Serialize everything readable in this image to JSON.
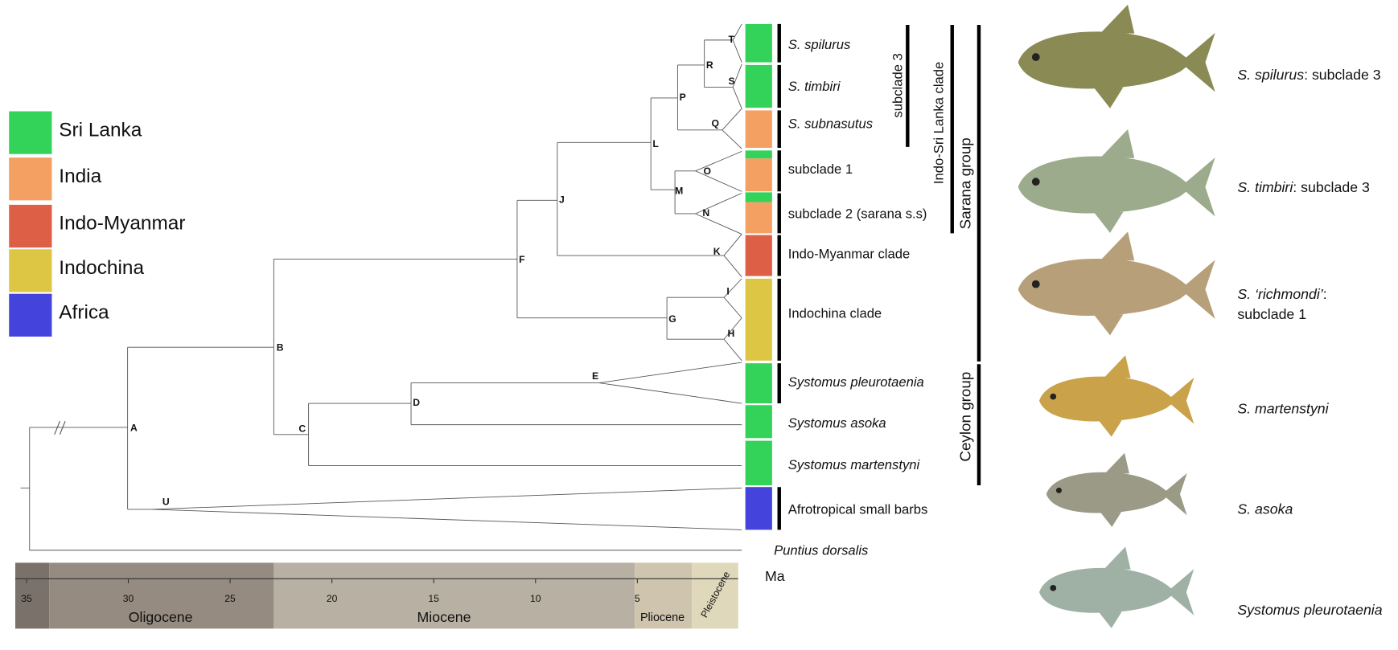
{
  "legend": [
    {
      "label": "Sri Lanka",
      "color": "#33d35a"
    },
    {
      "label": "India",
      "color": "#f4a062"
    },
    {
      "label": "Indo-Myanmar",
      "color": "#dd5f45"
    },
    {
      "label": "Indochina",
      "color": "#ddc643"
    },
    {
      "label": "Africa",
      "color": "#4444dd"
    }
  ],
  "nodes": [
    "A",
    "B",
    "C",
    "D",
    "E",
    "F",
    "G",
    "H",
    "I",
    "J",
    "K",
    "L",
    "M",
    "N",
    "O",
    "P",
    "Q",
    "R",
    "S",
    "T",
    "U"
  ],
  "taxa": [
    "S. spilurus",
    "S. timbiri",
    "S. subnasutus",
    "subclade 1",
    "subclade 2 (sarana s.s)",
    "Indo-Myanmar clade",
    "Indochina clade",
    "Systomus pleurotaenia",
    "Systomus asoka",
    "Systomus martenstyni",
    "Afrotropical small barbs",
    "Puntius dorsalis"
  ],
  "clades": [
    "subclade 3",
    "Indo-Sri Lanka clade",
    "Sarana group",
    "Ceylon group"
  ],
  "timescale": {
    "ticks": [
      35,
      30,
      25,
      20,
      15,
      10,
      5
    ],
    "unit": "Ma",
    "epochs": [
      "Oligocene",
      "Miocene",
      "Pliocene",
      "Pleistocene"
    ]
  },
  "fish": [
    {
      "species": "S. spilurus",
      "note": ": subclade 3"
    },
    {
      "species": "S. timbiri",
      "note": ": subclade 3"
    },
    {
      "species": "S. ‘richmondi’",
      "note": ":",
      "line2": "subclade 1"
    },
    {
      "species": "S. martenstyni"
    },
    {
      "species": "S. asoka"
    },
    {
      "species": "Systomus pleurotaenia"
    }
  ]
}
